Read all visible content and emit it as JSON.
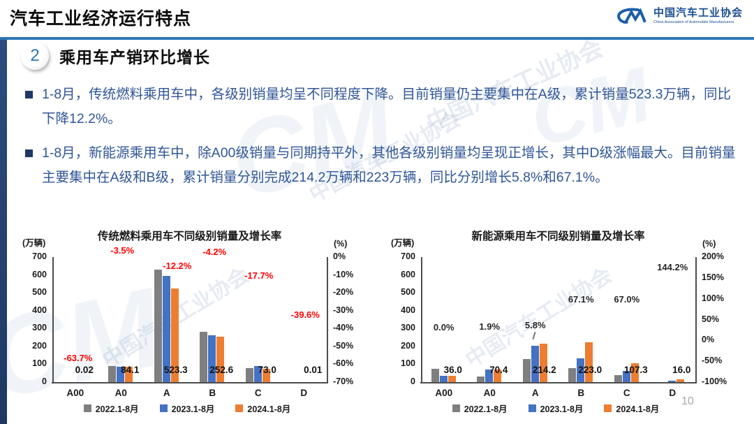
{
  "header": {
    "title": "汽车工业经济运行特点",
    "logo": {
      "acronym": "CM",
      "org_cn": "中国汽车工业协会",
      "org_en": "China Association of Automobile Manufacturers"
    }
  },
  "section": {
    "number": "2",
    "title": "乘用车产销环比增长"
  },
  "bullets": [
    "1-8月，传统燃料乘用车中，各级别销量均呈不同程度下降。目前销量仍主要集中在A级，累计销量523.3万辆，同比下降12.2%。",
    "1-8月，新能源乘用车中，除A00级销量与同期持平外，其他各级别销量均呈现正增长，其中D级涨幅最大。目前销量主要集中在A级和B级，累计销量分别完成214.2万辆和223万辆，同比分别增长5.8%和67.1%。"
  ],
  "watermark": {
    "text": "中国汽车工业协会",
    "mark": "CM"
  },
  "page_number": "10",
  "colors": {
    "accent_blue": "#2E75B6",
    "stripe_navy": "#1F3864",
    "text_blue": "#2F5597",
    "bar_gray": "#7F7F7F",
    "bar_blue": "#4472C4",
    "bar_orange": "#ED7D31",
    "growth_red": "#FF0000",
    "logo_blue": "#1B4F93"
  },
  "chart_data": [
    {
      "type": "bar",
      "title": "传统燃料乘用车不同级别销量及增长率",
      "unit_left": "(万辆)",
      "unit_right": "(%)",
      "categories": [
        "A00",
        "A0",
        "A",
        "B",
        "C",
        "D"
      ],
      "series": [
        {
          "name": "2022.1-8月",
          "color": "#7F7F7F",
          "values": [
            0.06,
            90,
            630,
            283,
            80,
            0.02
          ]
        },
        {
          "name": "2023.1-8月",
          "color": "#4472C4",
          "values": [
            0.055,
            87.2,
            596,
            263.7,
            88.7,
            0.017
          ]
        },
        {
          "name": "2024.1-8月",
          "color": "#ED7D31",
          "values": [
            0.02,
            84.1,
            523.3,
            252.6,
            73.0,
            0.01
          ]
        }
      ],
      "value_labels": [
        "0.02",
        "84.1",
        "523.3",
        "252.6",
        "73.0",
        "0.01"
      ],
      "growth_values": [
        -63.7,
        -3.5,
        -12.2,
        -4.2,
        -17.7,
        -39.6
      ],
      "growth_labels": [
        "-63.7%",
        "-3.5%",
        "-12.2%",
        "-4.2%",
        "-17.7%",
        "-39.6%"
      ],
      "growth_dx": [
        4,
        2,
        15,
        3,
        1,
        2
      ],
      "growth_color": "#FF0000",
      "left_axis": {
        "min": 0,
        "max": 700,
        "step": 100,
        "ticks": [
          700,
          600,
          500,
          400,
          300,
          200,
          100,
          0
        ]
      },
      "right_axis": {
        "max": 0,
        "min": -70,
        "step": 10,
        "values": [
          0,
          -10,
          -20,
          -30,
          -40,
          -50,
          -60,
          -70
        ],
        "labels": [
          "0%",
          "-10%",
          "-20%",
          "-30%",
          "-40%",
          "-50%",
          "-60%",
          "-70%"
        ]
      },
      "legend_position": "bottom",
      "grid": false
    },
    {
      "type": "bar",
      "title": "新能源乘用车不同级别销量及增长率",
      "unit_left": "(万辆)",
      "unit_right": "(%)",
      "categories": [
        "A00",
        "A0",
        "A",
        "B",
        "C",
        "D"
      ],
      "series": [
        {
          "name": "2022.1-8月",
          "color": "#7F7F7F",
          "values": [
            76,
            30,
            130,
            78,
            40,
            1
          ]
        },
        {
          "name": "2023.1-8月",
          "color": "#4472C4",
          "values": [
            36,
            69.1,
            202.5,
            133.5,
            64.3,
            6.6
          ]
        },
        {
          "name": "2024.1-8月",
          "color": "#ED7D31",
          "values": [
            36.0,
            70.4,
            214.2,
            223.0,
            107.3,
            16.0
          ]
        }
      ],
      "value_labels": [
        "36.0",
        "70.4",
        "214.2",
        "223.0",
        "107.3",
        "16.0"
      ],
      "growth_values": [
        0.0,
        1.9,
        5.8,
        67.1,
        67.0,
        144.2
      ],
      "growth_labels": [
        "0.0%",
        "1.9%",
        "5.8%",
        "67.1%",
        "67.0%",
        "144.2%"
      ],
      "growth_dx": [
        0,
        0,
        0,
        0,
        0,
        0
      ],
      "growth_color": "#262626",
      "leader_at": 2,
      "left_axis": {
        "min": 0,
        "max": 700,
        "step": 100,
        "ticks": [
          700,
          600,
          500,
          400,
          300,
          200,
          100,
          0
        ]
      },
      "right_axis": {
        "max": 200,
        "min": -100,
        "step": 50,
        "values": [
          200,
          150,
          100,
          50,
          0,
          -50,
          -100
        ],
        "labels": [
          "200%",
          "150%",
          "100%",
          "50%",
          "0%",
          "-50%",
          "-100%"
        ]
      },
      "legend_position": "bottom",
      "grid": false
    }
  ]
}
